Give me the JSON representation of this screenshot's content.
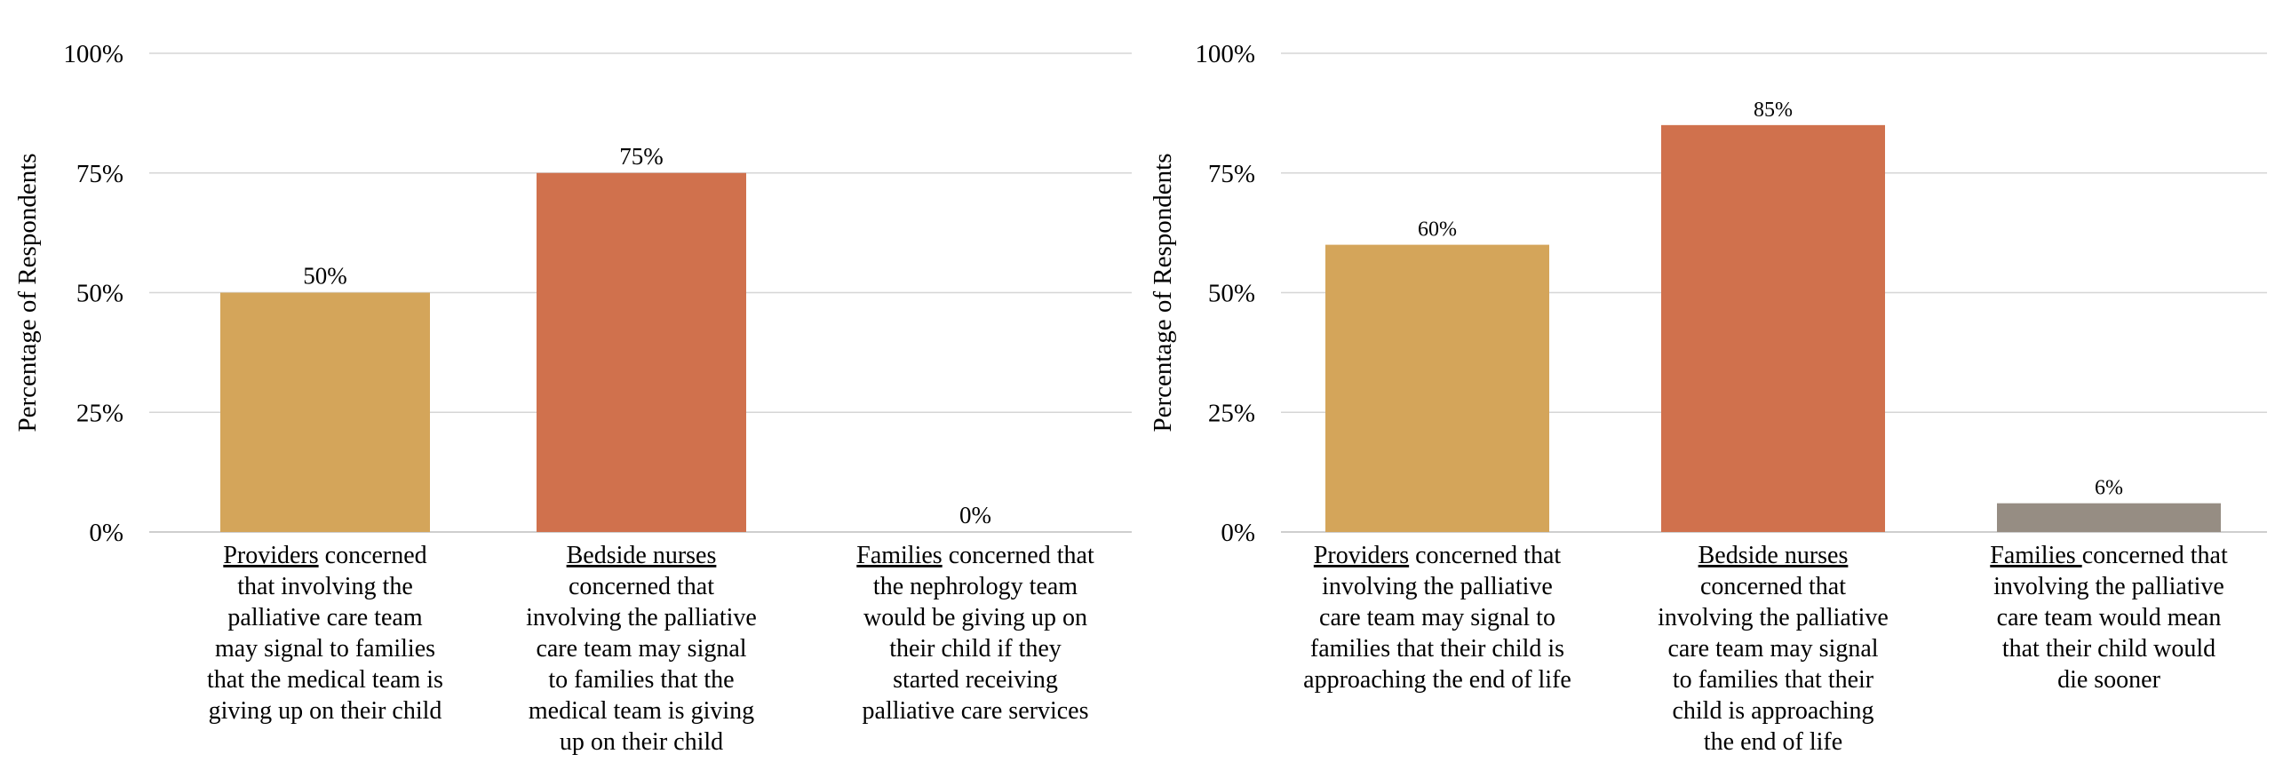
{
  "chart_data": [
    {
      "type": "bar",
      "categories": [
        {
          "lead": "Providers",
          "rest": " concerned that involving the palliative care team may signal to families that the medical team is giving up on their child"
        },
        {
          "lead": "Bedside nurses",
          "rest": " concerned that involving the palliative care team may signal to families that the medical team is giving up on their child"
        },
        {
          "lead": "Families",
          "rest": " concerned that the nephrology team would be giving up on their child if they started receiving palliative care services"
        }
      ],
      "category_lines": [
        [
          "|Providers| concerned",
          "that involving the",
          "palliative care team",
          "may signal to families",
          "that the medical team is",
          "giving up on their child"
        ],
        [
          "|Bedside nurses|",
          "concerned that",
          "involving the palliative",
          "care team may signal",
          "to families that the",
          "medical team is giving",
          "up on their child"
        ],
        [
          "|Families| concerned that",
          "the nephrology team",
          "would be giving up on",
          "their child if they",
          "started receiving",
          "palliative care services"
        ]
      ],
      "values": [
        50,
        75,
        0
      ],
      "data_labels": [
        "50%",
        "75%",
        "0%"
      ],
      "colors": [
        "#D4A55A",
        "#D0714D",
        "#968D83"
      ],
      "ylabel": "Percentage of Respondents",
      "ylim": [
        0,
        100
      ],
      "yticks": [
        0,
        25,
        50,
        75,
        100
      ],
      "ytick_labels": [
        "0%",
        "25%",
        "50%",
        "75%",
        "100%"
      ],
      "grid": true,
      "legend": "none"
    },
    {
      "type": "bar",
      "categories": [
        {
          "lead": "Providers",
          "rest": " concerned that involving the palliative care team may signal to families that their child is approaching the end of life"
        },
        {
          "lead": "Bedside nurses",
          "rest": " concerned that involving the palliative care team may signal to families that their child is approaching the end of life"
        },
        {
          "lead": "Families ",
          "rest": "concerned that involving the palliative care team would mean that their child would die sooner"
        }
      ],
      "category_lines": [
        [
          "|Providers| concerned that",
          "involving the palliative",
          "care team may signal to",
          "families that their child is",
          "approaching the end of life"
        ],
        [
          "|Bedside nurses|",
          "concerned that",
          "involving the palliative",
          "care team may signal",
          "to families that their",
          "child is approaching",
          "the end of life"
        ],
        [
          "|Families |concerned that",
          "involving the palliative",
          "care team would mean",
          "that their child would",
          "die sooner"
        ]
      ],
      "values": [
        60,
        85,
        6
      ],
      "data_labels": [
        "60%",
        "85%",
        "6%"
      ],
      "colors": [
        "#D4A55A",
        "#D0714D",
        "#968D83"
      ],
      "ylabel": "Percentage of Respondents",
      "ylim": [
        0,
        100
      ],
      "yticks": [
        0,
        25,
        50,
        75,
        100
      ],
      "ytick_labels": [
        "0%",
        "25%",
        "50%",
        "75%",
        "100%"
      ],
      "grid": true,
      "legend": "none"
    }
  ]
}
